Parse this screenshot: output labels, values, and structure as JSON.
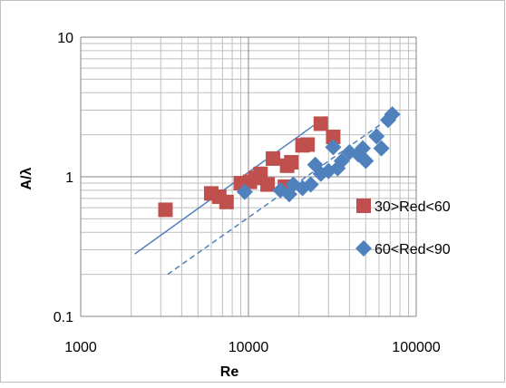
{
  "chart_data": {
    "type": "scatter",
    "xlabel": "Re",
    "ylabel": "A/λ",
    "xscale": "log",
    "yscale": "log",
    "xlim": [
      1000,
      100000
    ],
    "ylim": [
      0.1,
      10
    ],
    "xticks": [
      "1000",
      "10000",
      "100000"
    ],
    "yticks": [
      "0.1",
      "1",
      "10"
    ],
    "grid": true,
    "legend_position": "right",
    "series": [
      {
        "name": "30>Red<60",
        "marker": "square",
        "color": "#c0504d",
        "x": [
          3200,
          6000,
          6700,
          7400,
          9000,
          10200,
          11000,
          11800,
          13000,
          14000,
          16500,
          17000,
          18000,
          21000,
          22500,
          27000,
          32000
        ],
        "y": [
          0.58,
          0.76,
          0.72,
          0.66,
          0.9,
          0.92,
          0.98,
          1.05,
          0.88,
          1.35,
          0.85,
          1.2,
          1.27,
          1.68,
          1.7,
          2.4,
          1.93
        ]
      },
      {
        "name": "60<Red<90",
        "marker": "diamond",
        "color": "#4f81bd",
        "x": [
          9500,
          15500,
          17500,
          18500,
          21000,
          23500,
          25000,
          27000,
          30000,
          32000,
          34000,
          36000,
          40000,
          45000,
          48000,
          50000,
          58000,
          62000,
          68000,
          72000
        ],
        "y": [
          0.78,
          0.8,
          0.75,
          0.88,
          0.83,
          0.88,
          1.22,
          1.05,
          1.1,
          1.63,
          1.15,
          1.3,
          1.5,
          1.45,
          1.6,
          1.3,
          1.95,
          1.6,
          2.55,
          2.8
        ]
      }
    ],
    "trendlines": [
      {
        "series": "30>Red<60",
        "style": "solid",
        "color": "#4f81bd",
        "x": [
          2100,
          29000
        ],
        "y": [
          0.28,
          2.7
        ]
      },
      {
        "series": "60<Red<90",
        "style": "dashed",
        "color": "#4f81bd",
        "x": [
          3300,
          73000
        ],
        "y": [
          0.2,
          2.75
        ]
      }
    ]
  }
}
